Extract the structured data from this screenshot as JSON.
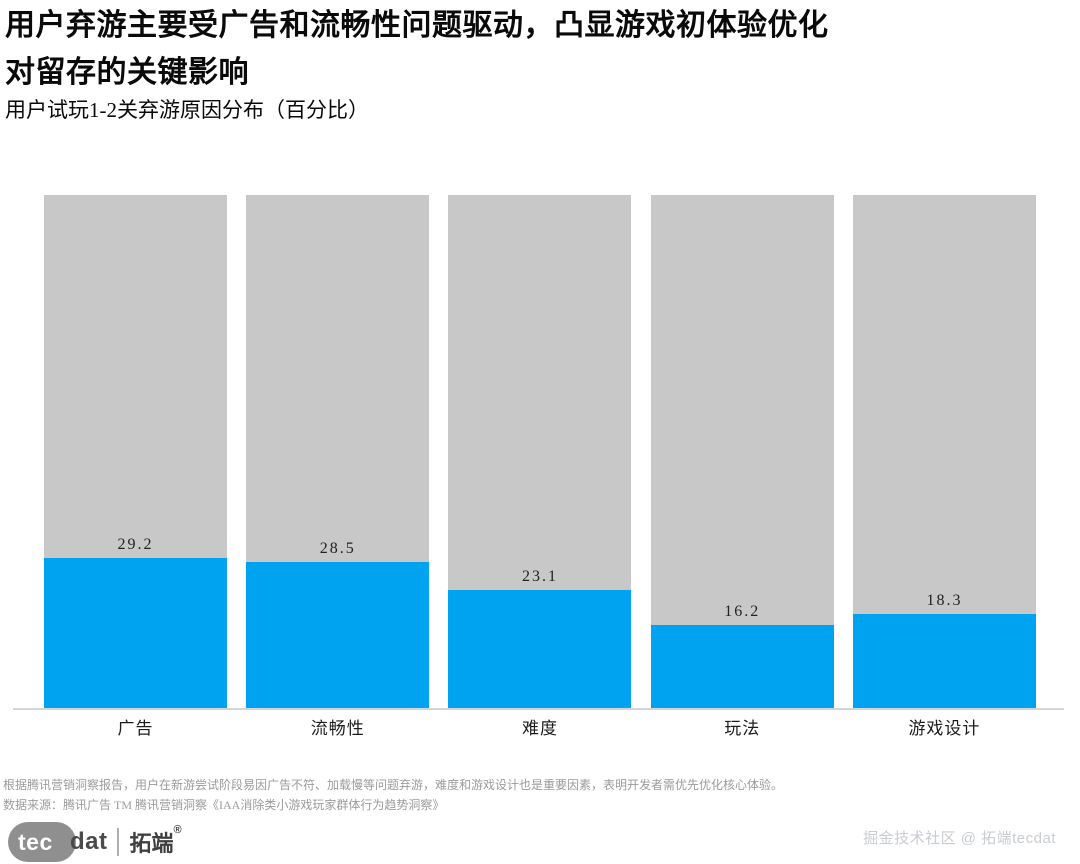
{
  "header": {
    "title_line1": "用户弃游主要受广告和流畅性问题驱动，凸显游戏初体验优化",
    "title_line2": "对留存的关键影响",
    "subtitle": "用户试玩1-2关弃游原因分布（百分比）"
  },
  "chart_data": {
    "type": "bar",
    "title": "用户试玩1-2关弃游原因分布（百分比）",
    "categories": [
      "广告",
      "流畅性",
      "难度",
      "玩法",
      "游戏设计"
    ],
    "values": [
      29.2,
      28.5,
      23.1,
      16.2,
      18.3
    ],
    "value_labels": [
      "29.2",
      "28.5",
      "23.1",
      "16.2",
      "18.3"
    ],
    "xlabel": "",
    "ylabel": "",
    "ylim": [
      0,
      100
    ],
    "background_bar_value": 100,
    "grid": false,
    "legend": "none",
    "colors": {
      "bar": "#00A3EF",
      "background_bar": "#C8C8C8",
      "axis_line": "#D5D5D5"
    }
  },
  "footer": {
    "note_line1": "根据腾讯营销洞察报告，用户在新游尝试阶段易因广告不符、加载慢等问题弃游，难度和游戏设计也是重要因素，表明开发者需优先优化核心体验。",
    "note_line2": "数据来源：腾讯广告 TM 腾讯营销洞察《IAA消除类小游戏玩家群体行为趋势洞察》",
    "logo": {
      "tec": "tec",
      "dat": "dat",
      "brand": "拓端",
      "reg": "®"
    },
    "watermark": "掘金技术社区 @ 拓端tecdat"
  }
}
